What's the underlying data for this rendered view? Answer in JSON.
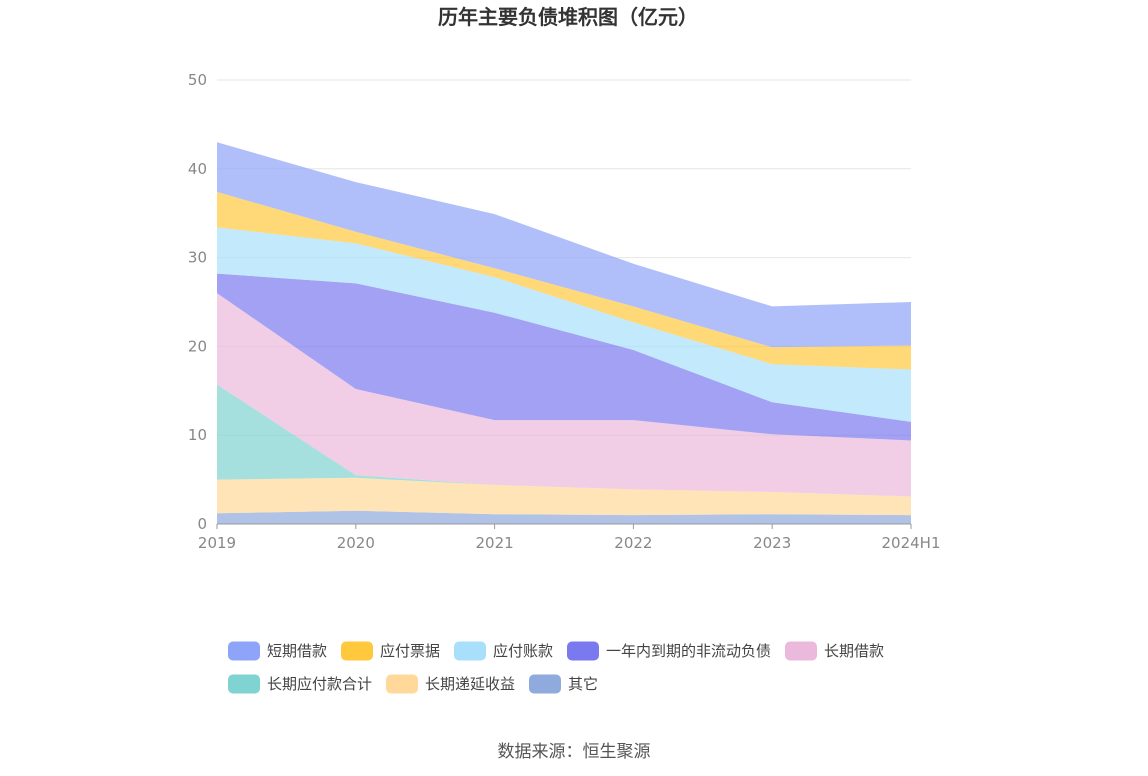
{
  "chart_data": {
    "type": "area",
    "stacked": true,
    "title": "历年主要负债堆积图（亿元）",
    "x": [
      "2019",
      "2020",
      "2021",
      "2022",
      "2023",
      "2024H1"
    ],
    "ylim": [
      0,
      50
    ],
    "yticks": [
      0,
      10,
      20,
      30,
      40,
      50
    ],
    "grid": true,
    "legend_position": "bottom",
    "series": [
      {
        "name": "其它",
        "color": "#8faadc",
        "values": [
          1.2,
          1.5,
          1.1,
          1.0,
          1.1,
          1.0
        ]
      },
      {
        "name": "长期递延收益",
        "color": "#ffd89a",
        "values": [
          3.8,
          3.7,
          3.3,
          2.9,
          2.5,
          2.1
        ]
      },
      {
        "name": "长期应付款合计",
        "color": "#7fd3d1",
        "values": [
          10.7,
          0.3,
          0.0,
          0.0,
          0.0,
          0.0
        ]
      },
      {
        "name": "长期借款",
        "color": "#ebb9dc",
        "values": [
          10.3,
          9.7,
          7.3,
          7.8,
          6.5,
          6.3
        ]
      },
      {
        "name": "一年内到期的非流动负债",
        "color": "#7b79f0",
        "values": [
          2.2,
          11.9,
          12.1,
          7.9,
          3.6,
          2.1
        ]
      },
      {
        "name": "应付账款",
        "color": "#a8e0fb",
        "values": [
          5.2,
          4.5,
          4.0,
          3.1,
          4.3,
          5.9
        ]
      },
      {
        "name": "应付票据",
        "color": "#ffc83d",
        "values": [
          4.0,
          1.3,
          1.0,
          1.8,
          1.9,
          2.7
        ]
      },
      {
        "name": "短期借款",
        "color": "#8ea4f8",
        "values": [
          5.6,
          5.6,
          6.1,
          4.8,
          4.6,
          4.9
        ]
      }
    ],
    "legend": [
      "短期借款",
      "应付票据",
      "应付账款",
      "一年内到期的非流动负债",
      "长期借款",
      "长期应付款合计",
      "长期递延收益",
      "其它"
    ]
  },
  "source": "数据来源：恒生聚源"
}
